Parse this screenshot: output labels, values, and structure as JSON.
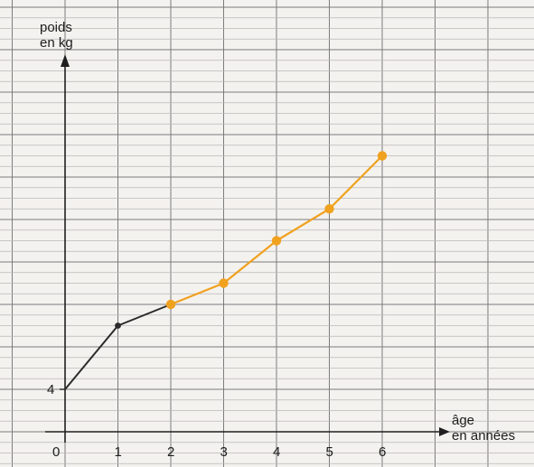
{
  "chart_data": {
    "type": "line",
    "xlabel": [
      "âge",
      "en années"
    ],
    "ylabel": [
      "poids",
      "en kg"
    ],
    "x_ticks": [
      "0",
      "1",
      "2",
      "3",
      "4",
      "5",
      "6"
    ],
    "y_ticks": [
      {
        "label": "4",
        "value": 4
      }
    ],
    "series": [
      {
        "color": "#2b2b2b",
        "points": [
          [
            0,
            4
          ],
          [
            1,
            10
          ],
          [
            2,
            12
          ]
        ]
      },
      {
        "color": "#f0a11e",
        "points": [
          [
            2,
            12
          ],
          [
            3,
            14
          ],
          [
            4,
            18
          ],
          [
            5,
            21
          ],
          [
            6,
            26
          ]
        ]
      }
    ],
    "xlim": [
      0,
      6
    ],
    "ylim": [
      0,
      30
    ],
    "grid": true
  }
}
